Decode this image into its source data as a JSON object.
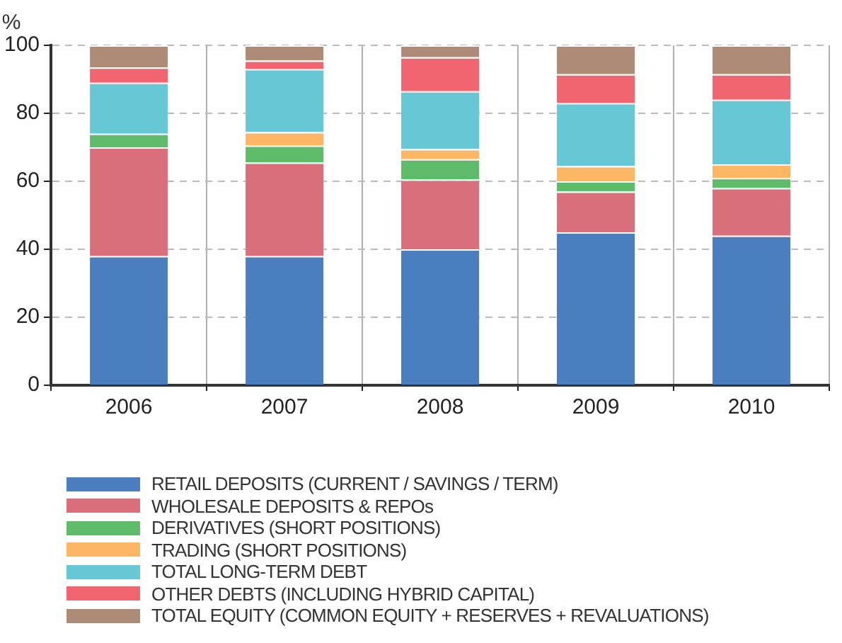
{
  "chart_data": {
    "type": "bar",
    "stacked": true,
    "ylabel": "%",
    "categories": [
      "2006",
      "2007",
      "2008",
      "2009",
      "2010"
    ],
    "ylim": [
      0,
      100
    ],
    "yticks": [
      0,
      20,
      40,
      60,
      80,
      100
    ],
    "grid": true,
    "legend": "bottom",
    "series": [
      {
        "name": "RETAIL DEPOSITS (CURRENT / SAVINGS / TERM)",
        "color": "#4a7ebf",
        "values": [
          38,
          38,
          40,
          45,
          44
        ]
      },
      {
        "name": "WHOLESALE DEPOSITS & REPOs",
        "color": "#da6f7c",
        "values": [
          32,
          27.5,
          20.5,
          12,
          14
        ]
      },
      {
        "name": "DERIVATIVES (SHORT POSITIONS)",
        "color": "#5dbb6a",
        "values": [
          4,
          5,
          6,
          3,
          3
        ]
      },
      {
        "name": "TRADING (SHORT POSITIONS)",
        "color": "#fcb664",
        "values": [
          0,
          4,
          3,
          4.5,
          4
        ]
      },
      {
        "name": "TOTAL LONG-TERM DEBT",
        "color": "#66c8d4",
        "values": [
          15,
          18.5,
          17,
          18.5,
          19
        ]
      },
      {
        "name": "OTHER DEBTS (INCLUDING HYBRID CAPITAL)",
        "color": "#f06570",
        "values": [
          4.5,
          2.5,
          10,
          8.5,
          7.5
        ]
      },
      {
        "name": "TOTAL EQUITY (COMMON EQUITY + RESERVES + REVALUATIONS)",
        "color": "#ae8b76",
        "values": [
          6.5,
          4.5,
          3.5,
          8.5,
          8.5
        ]
      }
    ]
  }
}
